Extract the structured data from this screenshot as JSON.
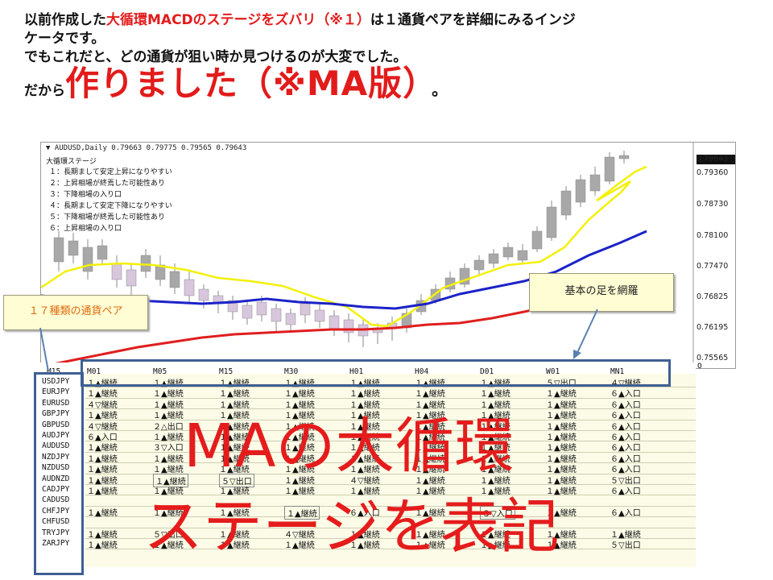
{
  "intro": {
    "line1_a": "以前作成した",
    "line1_b": "大循環MACDのステージをズバリ（※１）",
    "line1_c": "は１通貨ペアを詳細にみるインジ",
    "line2": "ケータです。",
    "line3": "でもこれだと、どの通貨が狙い時か見つけるのが大変でした。",
    "line4_small": "だから",
    "line4_big": "作りました（※MA版）",
    "line4_dot": "。"
  },
  "chart": {
    "symbol_line": "AUDUSD,Daily  0.79663 0.79775 0.79565 0.79643",
    "stage_title": "大循環ステージ",
    "stages": [
      "１：長期まして安定上昇になりやすい",
      "２：上昇相場が終焉した可能性あり",
      "３：下降相場の入り口",
      "４：長期まして安定下降になりやすい",
      "５：下降相場が終焉した可能性あり",
      "６：上昇相場の入り口"
    ],
    "current_price": "0.79643",
    "price_levels": [
      "0.79360",
      "0.78730",
      "0.78100",
      "0.77470",
      "0.76825",
      "0.76195",
      "0.75565"
    ],
    "zero_label": "0"
  },
  "table": {
    "corner": "M15",
    "columns": [
      "M01",
      "M05",
      "M15",
      "M30",
      "H01",
      "H04",
      "D01",
      "W01",
      "MN1"
    ],
    "pairs": [
      "USDJPY",
      "EURJPY",
      "EURUSD",
      "GBPJPY",
      "GBPUSD",
      "AUDJPY",
      "AUDUSD",
      "NZDJPY",
      "NZDUSD",
      "AUDNZD",
      "CADJPY",
      "CADUSD",
      "CHFJPY",
      "CHFUSD",
      "TRYJPY",
      "ZARJPY"
    ],
    "rows": [
      [
        "１▲継続",
        "１▲継続",
        "１▲継続",
        "１▲継続",
        "１▲継続",
        "１▲継続",
        "１▲継続",
        "５▽出口",
        "４▽継続"
      ],
      [
        "１▲継続",
        "１▲継続",
        "１▲継続",
        "１▲継続",
        "１▲継続",
        "１▲継続",
        "１▲継続",
        "１▲継続",
        "６▲入口"
      ],
      [
        "４▽継続",
        "１▲継続",
        "１▲継続",
        "１▲継続",
        "１▲継続",
        "１▲継続",
        "１▲継続",
        "１▲継続",
        "６▲入口"
      ],
      [
        "１▲継続",
        "１▲継続",
        "１▲継続",
        "１▲継続",
        "１▲継続",
        "１▲継続",
        "１▲継続",
        "１▲継続",
        "６▲入口"
      ],
      [
        "４▽継続",
        "２△出口",
        "１▲継続",
        "１▲継続",
        "１▲継続",
        "１▲継続",
        "１▲継続",
        "１▲継続",
        "６▲入口"
      ],
      [
        "６▲入口",
        "１▲継続",
        "１▲継続",
        "１▲継続",
        "１▲継続",
        "１▲継続",
        "１▲継続",
        "１▲継続",
        "６▲入口"
      ],
      [
        "１▲継続",
        "３▽入口",
        "１▲継続",
        "１▲継続",
        "１▲継続",
        "１▲継続",
        "１▲継続",
        "１▲継続",
        "６▲入口"
      ],
      [
        "１▲継続",
        "１▲継続",
        "１▲継続",
        "１▲継続",
        "１▲継続",
        "１▲継続",
        "１▲継続",
        "１▲継続",
        "６▲入口"
      ],
      [
        "１▲継続",
        "１▲継続",
        "１▲継続",
        "１▲継続",
        "１▲継続",
        "１▲継続",
        "１▲継続",
        "１▲継続",
        "６▲入口"
      ],
      [
        "１▲継続",
        "１▲継続",
        "５▽出口",
        "１▲継続",
        "４▽継続",
        "１▲継続",
        "１▲継続",
        "１▲継続",
        "５▽出口"
      ],
      [
        "１▲継続",
        "１▲継続",
        "１▲継続",
        "１▲継続",
        "１▲継続",
        "１▲継続",
        "１▲継続",
        "１▲継続",
        "６▲入口"
      ],
      [
        "",
        "",
        "",
        "",
        "",
        "",
        "",
        "",
        ""
      ],
      [
        "１▲継続",
        "１▲継続",
        "１▲継続",
        "１▲継続",
        "６▲入口",
        "１▲継続",
        "３▽入口",
        "１▲継続",
        "６▲入口"
      ],
      [
        "",
        "",
        "",
        "",
        "",
        "",
        "",
        "",
        ""
      ],
      [
        "１▲継続",
        "５▽出口",
        "１▲継続",
        "４▽継続",
        "１▲継続",
        "１▲継続",
        "１▲継続",
        "１▲継続",
        "１▲継続"
      ],
      [
        "１▲継続",
        "１▲継続",
        "１▲継続",
        "１▲継続",
        "１▲継続",
        "１▲継続",
        "１▲継続",
        "１▲継続",
        "５▽出口"
      ]
    ],
    "boxed_cells": [
      [
        9,
        1
      ],
      [
        9,
        2
      ],
      [
        12,
        3
      ],
      [
        12,
        6
      ]
    ]
  },
  "callouts": {
    "pairs": "１７種類の通貨ペア",
    "timeframes": "基本の足を網羅"
  },
  "overlay": {
    "line1": "MAの大循環",
    "line2": "ステージを表記"
  },
  "colors": {
    "red": "#e21b1b",
    "frame_blue": "#3f5f93",
    "ma_short": "#f3f00a",
    "ma_mid": "#1c22c8",
    "ma_long": "#e01e1e"
  }
}
